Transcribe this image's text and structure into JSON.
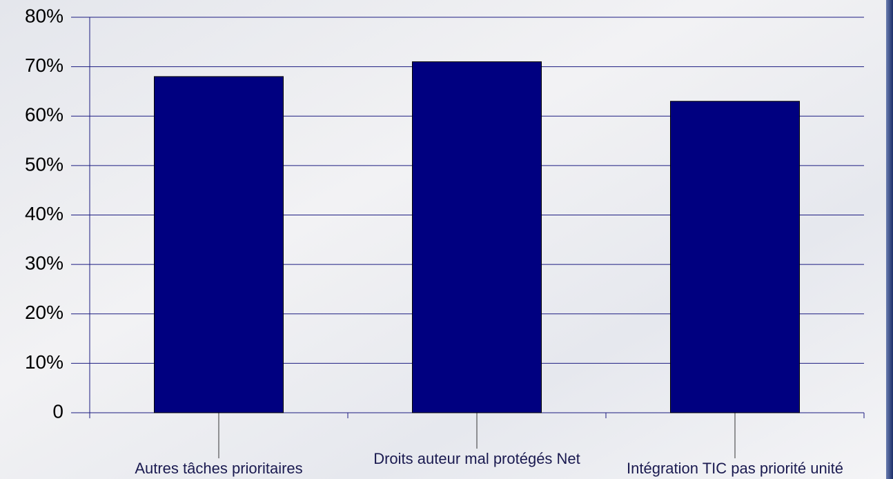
{
  "chart_data": {
    "type": "bar",
    "categories": [
      "Autres tâches prioritaires",
      "Droits auteur mal protégés Net",
      "Intégration TIC pas priorité unité"
    ],
    "values": [
      68,
      71,
      63
    ],
    "color": "#000080",
    "ylim": [
      0,
      80
    ],
    "yticks": [
      0,
      {
        "value": 10,
        "label": "10%"
      },
      {
        "value": 20,
        "label": "20%"
      },
      {
        "value": 30,
        "label": "30%"
      },
      {
        "value": 40,
        "label": "40%"
      },
      {
        "value": 50,
        "label": "50%"
      },
      {
        "value": 60,
        "label": "60%"
      },
      {
        "value": 70,
        "label": "70%"
      },
      {
        "value": 80,
        "label": "80%"
      }
    ],
    "grid": true
  }
}
